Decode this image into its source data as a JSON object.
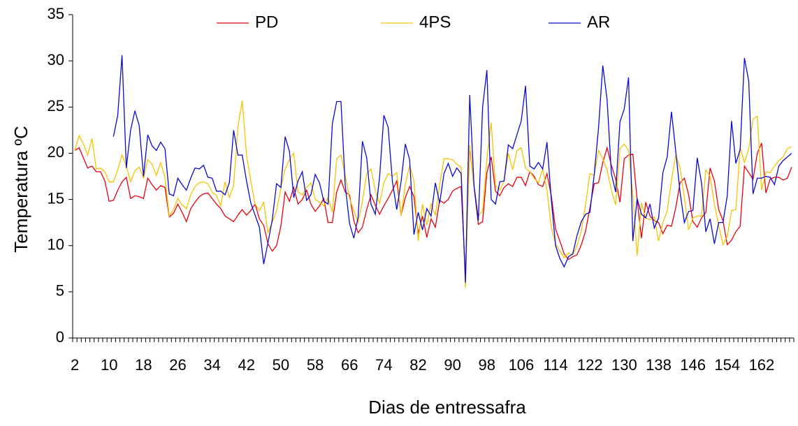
{
  "chart_data": {
    "type": "line",
    "ylabel": "Temperatura ºC",
    "xlabel": "Dias de entressafra",
    "categories": [
      "2",
      null,
      null,
      null,
      null,
      null,
      null,
      null,
      "10",
      null,
      null,
      null,
      null,
      null,
      null,
      null,
      "18",
      null,
      null,
      null,
      null,
      null,
      null,
      null,
      "26",
      null,
      null,
      null,
      null,
      null,
      null,
      null,
      "34",
      null,
      null,
      null,
      null,
      null,
      null,
      null,
      "42",
      null,
      null,
      null,
      null,
      null,
      null,
      null,
      "50",
      null,
      null,
      null,
      null,
      null,
      null,
      null,
      "58",
      null,
      null,
      null,
      null,
      null,
      null,
      null,
      "66",
      null,
      null,
      null,
      null,
      null,
      null,
      null,
      "74",
      null,
      null,
      null,
      null,
      null,
      null,
      null,
      "82",
      null,
      null,
      null,
      null,
      null,
      null,
      null,
      "90",
      null,
      null,
      null,
      null,
      null,
      null,
      null,
      "98",
      null,
      null,
      null,
      null,
      null,
      null,
      null,
      "106",
      null,
      null,
      null,
      null,
      null,
      null,
      null,
      "114",
      null,
      null,
      null,
      null,
      null,
      null,
      null,
      "122",
      null,
      null,
      null,
      null,
      null,
      null,
      null,
      "130",
      null,
      null,
      null,
      null,
      null,
      null,
      null,
      "138",
      null,
      null,
      null,
      null,
      null,
      null,
      null,
      "146",
      null,
      null,
      null,
      null,
      null,
      null,
      null,
      "154",
      null,
      null,
      null,
      null,
      null,
      null,
      null,
      "162",
      null,
      null,
      null,
      null,
      null,
      null,
      null
    ],
    "series": [
      {
        "name": "PD",
        "color": "#e8000b",
        "values": [
          20.3,
          20.6,
          19.5,
          18.4,
          18.6,
          18.0,
          18.0,
          17.0,
          14.8,
          14.9,
          16.0,
          16.9,
          17.4,
          15.1,
          15.4,
          15.3,
          15.1,
          17.3,
          16.6,
          16.0,
          16.5,
          16.3,
          13.1,
          13.5,
          14.5,
          13.6,
          12.6,
          14.0,
          14.7,
          15.3,
          15.6,
          15.7,
          15.1,
          14.5,
          14.0,
          13.2,
          12.9,
          12.6,
          13.3,
          13.9,
          13.3,
          13.8,
          14.5,
          12.9,
          12.2,
          10.2,
          9.4,
          10.0,
          12.1,
          15.8,
          14.8,
          16.3,
          14.5,
          15.0,
          16.0,
          14.5,
          13.7,
          14.3,
          15.1,
          12.5,
          12.5,
          15.8,
          17.1,
          15.8,
          15.5,
          12.7,
          11.4,
          12.0,
          13.9,
          15.5,
          14.4,
          13.4,
          14.3,
          15.1,
          16.0,
          17.0,
          13.3,
          15.2,
          16.4,
          15.3,
          11.3,
          13.2,
          10.9,
          12.9,
          12.0,
          14.9,
          14.6,
          15.0,
          15.9,
          16.2,
          16.4,
          6.5,
          20.7,
          16.4,
          12.3,
          12.6,
          17.9,
          19.6,
          15.9,
          15.4,
          16.3,
          16.7,
          16.4,
          17.4,
          17.4,
          16.5,
          18.0,
          17.5,
          16.6,
          16.4,
          17.8,
          15.4,
          11.8,
          10.5,
          9.1,
          8.5,
          8.8,
          9.0,
          10.1,
          11.6,
          14.1,
          16.7,
          16.8,
          19.0,
          20.6,
          18.7,
          17.2,
          14.7,
          19.4,
          19.8,
          19.9,
          15.0,
          10.8,
          14.7,
          13.2,
          12.7,
          12.5,
          11.3,
          12.2,
          12.1,
          14.1,
          16.8,
          17.3,
          15.5,
          12.6,
          12.0,
          13.0,
          13.6,
          18.4,
          17.0,
          13.9,
          12.7,
          10.1,
          10.6,
          11.5,
          12.1,
          18.6,
          17.9,
          17.2,
          20.0,
          21.1,
          15.7,
          17.2,
          17.4,
          17.4,
          17.1,
          17.3,
          18.5
        ]
      },
      {
        "name": "4PS",
        "color": "#f5c400",
        "values": [
          20.3,
          21.9,
          21.0,
          19.8,
          21.6,
          18.3,
          18.4,
          18.0,
          16.9,
          16.9,
          18.2,
          19.8,
          18.6,
          16.9,
          18.1,
          18.5,
          17.3,
          19.3,
          18.8,
          17.6,
          19.0,
          17.4,
          13.2,
          13.9,
          15.1,
          14.4,
          14.0,
          15.5,
          16.4,
          16.8,
          16.9,
          16.7,
          15.8,
          15.4,
          14.3,
          16.9,
          15.2,
          16.5,
          22.9,
          25.7,
          19.8,
          17.0,
          14.5,
          13.8,
          14.7,
          11.4,
          12.5,
          13.8,
          16.2,
          18.3,
          19.3,
          20.0,
          15.8,
          15.5,
          16.3,
          16.8,
          15.0,
          14.7,
          14.3,
          15.2,
          13.6,
          19.4,
          19.8,
          17.6,
          15.1,
          13.8,
          12.5,
          14.8,
          17.8,
          18.3,
          16.0,
          14.6,
          16.8,
          17.8,
          17.5,
          17.9,
          13.2,
          16.6,
          18.7,
          17.0,
          10.5,
          14.5,
          12.2,
          14.5,
          13.3,
          16.6,
          19.4,
          19.4,
          19.3,
          18.8,
          18.5,
          5.4,
          20.9,
          16.4,
          13.2,
          13.8,
          19.4,
          23.3,
          16.5,
          16.0,
          17.0,
          20.0,
          18.2,
          20.3,
          20.6,
          18.4,
          18.0,
          17.3,
          16.8,
          18.3,
          16.0,
          12.0,
          10.2,
          9.4,
          8.7,
          9.2,
          9.0,
          10.0,
          11.6,
          14.5,
          17.8,
          17.6,
          20.3,
          19.4,
          18.2,
          16.0,
          14.4,
          20.5,
          21.0,
          20.3,
          15.5,
          8.9,
          14.6,
          13.0,
          12.8,
          13.1,
          10.5,
          12.5,
          13.7,
          17.1,
          19.8,
          18.4,
          15.2,
          11.7,
          13.0,
          13.2,
          13.2,
          18.2,
          17.5,
          14.5,
          12.2,
          10.1,
          11.0,
          13.8,
          13.9,
          20.6,
          19.0,
          20.5,
          23.7,
          24.0,
          16.0,
          18.0,
          17.9,
          18.6,
          19.2,
          19.6,
          20.5,
          20.7
        ]
      },
      {
        "name": "AR",
        "color": "#0a0ad0",
        "values": [
          null,
          null,
          null,
          null,
          null,
          null,
          null,
          null,
          null,
          21.8,
          24.1,
          30.6,
          18.4,
          22.5,
          24.6,
          23.0,
          17.5,
          22.0,
          20.8,
          20.3,
          21.2,
          20.5,
          15.6,
          15.4,
          17.3,
          16.6,
          16.0,
          17.3,
          18.4,
          18.3,
          18.7,
          17.4,
          17.3,
          15.9,
          15.9,
          15.5,
          16.8,
          22.5,
          19.8,
          19.8,
          17.0,
          14.6,
          13.3,
          12.0,
          8.0,
          10.3,
          12.8,
          16.7,
          16.3,
          21.8,
          20.2,
          15.2,
          17.0,
          18.0,
          14.9,
          15.5,
          17.7,
          16.8,
          14.8,
          14.5,
          23.2,
          25.6,
          25.6,
          16.5,
          12.4,
          10.8,
          13.1,
          21.3,
          19.5,
          14.5,
          13.4,
          17.4,
          24.1,
          22.8,
          16.9,
          13.9,
          16.9,
          21.0,
          19.3,
          11.2,
          13.6,
          11.7,
          14.0,
          13.2,
          16.8,
          14.6,
          17.8,
          18.9,
          17.5,
          18.4,
          17.8,
          6.0,
          26.3,
          16.5,
          12.7,
          25.0,
          29.0,
          15.0,
          14.5,
          16.9,
          17.0,
          20.9,
          20.5,
          22.0,
          23.5,
          27.3,
          18.6,
          18.3,
          19.0,
          18.3,
          21.2,
          15.0,
          10.0,
          8.6,
          7.7,
          8.8,
          9.1,
          11.1,
          12.6,
          13.4,
          13.6,
          17.7,
          22.7,
          29.5,
          25.8,
          17.8,
          15.8,
          23.4,
          24.8,
          28.2,
          10.5,
          15.1,
          13.4,
          13.0,
          14.5,
          11.9,
          13.0,
          17.9,
          19.6,
          24.5,
          20.2,
          15.8,
          12.5,
          13.7,
          13.8,
          19.5,
          16.8,
          11.5,
          12.9,
          10.2,
          12.5,
          12.5,
          15.4,
          23.5,
          18.9,
          20.4,
          30.3,
          27.8,
          15.6,
          17.3,
          17.3,
          17.5,
          17.4,
          16.6,
          18.6,
          19.2,
          19.6,
          20.0
        ]
      }
    ],
    "ylim": [
      0,
      35
    ],
    "yticks": [
      0,
      5,
      10,
      15,
      20,
      25,
      30,
      35
    ],
    "grid": false,
    "legend": "top"
  }
}
